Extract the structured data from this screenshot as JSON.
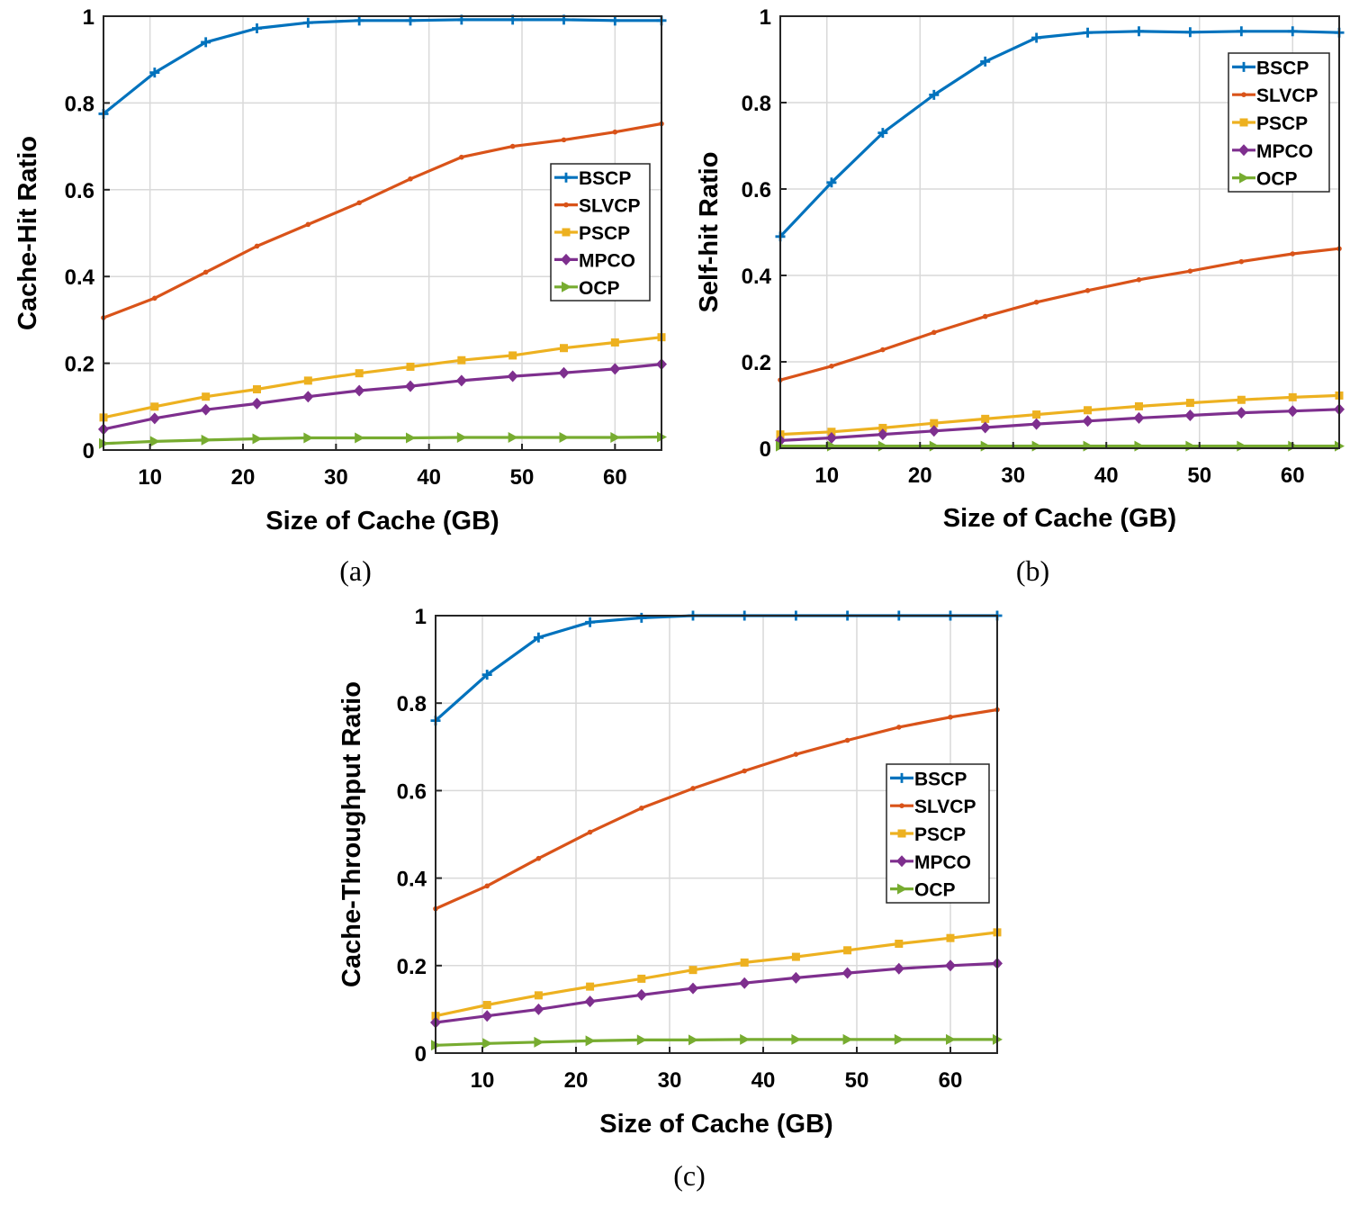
{
  "colors": {
    "BSCP": "#0072BD",
    "SLVCP": "#D95319",
    "PSCP": "#EDB120",
    "MPCO": "#7E2F8E",
    "OCP": "#77AC30",
    "grid": "#d9d9d9",
    "axis": "#262626"
  },
  "chart_data": [
    {
      "id": "a",
      "type": "line",
      "caption": "(a)",
      "xlabel": "Size of Cache (GB)",
      "ylabel": "Cache-Hit Ratio",
      "xlim": [
        5,
        65
      ],
      "ylim": [
        0,
        1
      ],
      "xticks": [
        10,
        20,
        30,
        40,
        50,
        60
      ],
      "yticks": [
        0,
        0.2,
        0.4,
        0.6,
        0.8,
        1
      ],
      "yticklabels": [
        "0",
        "0.2",
        "0.4",
        "0.6",
        "0.8",
        "1"
      ],
      "legend_position": "right-middle",
      "x": [
        5,
        10.5,
        16,
        21.5,
        27,
        32.5,
        38,
        43.5,
        49,
        54.5,
        60,
        65
      ],
      "series": [
        {
          "name": "BSCP",
          "marker": "plus",
          "values": [
            0.775,
            0.87,
            0.94,
            0.972,
            0.985,
            0.99,
            0.99,
            0.992,
            0.992,
            0.992,
            0.99,
            0.99
          ]
        },
        {
          "name": "SLVCP",
          "marker": "point",
          "values": [
            0.305,
            0.35,
            0.41,
            0.47,
            0.52,
            0.57,
            0.625,
            0.675,
            0.7,
            0.715,
            0.733,
            0.752
          ]
        },
        {
          "name": "PSCP",
          "marker": "square",
          "values": [
            0.075,
            0.1,
            0.123,
            0.14,
            0.16,
            0.177,
            0.192,
            0.207,
            0.218,
            0.235,
            0.248,
            0.26
          ]
        },
        {
          "name": "MPCO",
          "marker": "diamond",
          "values": [
            0.048,
            0.073,
            0.093,
            0.107,
            0.123,
            0.137,
            0.147,
            0.16,
            0.17,
            0.178,
            0.187,
            0.198
          ]
        },
        {
          "name": "OCP",
          "marker": "triangle-right",
          "values": [
            0.015,
            0.02,
            0.023,
            0.026,
            0.028,
            0.028,
            0.028,
            0.029,
            0.029,
            0.029,
            0.029,
            0.03
          ]
        }
      ]
    },
    {
      "id": "b",
      "type": "line",
      "caption": "(b)",
      "xlabel": "Size of Cache (GB)",
      "ylabel": "Self-hit Ratio",
      "xlim": [
        5,
        65
      ],
      "ylim": [
        0,
        1
      ],
      "xticks": [
        10,
        20,
        30,
        40,
        50,
        60
      ],
      "yticks": [
        0,
        0.2,
        0.4,
        0.6,
        0.8,
        1
      ],
      "yticklabels": [
        "0",
        "0.2",
        "0.4",
        "0.6",
        "0.8",
        "1"
      ],
      "legend_position": "top-right",
      "x": [
        5,
        10.5,
        16,
        21.5,
        27,
        32.5,
        38,
        43.5,
        49,
        54.5,
        60,
        65
      ],
      "series": [
        {
          "name": "BSCP",
          "marker": "plus",
          "values": [
            0.49,
            0.615,
            0.73,
            0.818,
            0.895,
            0.95,
            0.962,
            0.965,
            0.963,
            0.965,
            0.965,
            0.962
          ]
        },
        {
          "name": "SLVCP",
          "marker": "point",
          "values": [
            0.158,
            0.19,
            0.228,
            0.268,
            0.305,
            0.338,
            0.365,
            0.39,
            0.41,
            0.432,
            0.45,
            0.462
          ]
        },
        {
          "name": "PSCP",
          "marker": "square",
          "values": [
            0.032,
            0.038,
            0.047,
            0.058,
            0.068,
            0.078,
            0.088,
            0.097,
            0.105,
            0.112,
            0.118,
            0.122
          ]
        },
        {
          "name": "MPCO",
          "marker": "diamond",
          "values": [
            0.018,
            0.024,
            0.032,
            0.04,
            0.048,
            0.056,
            0.063,
            0.07,
            0.076,
            0.082,
            0.086,
            0.09
          ]
        },
        {
          "name": "OCP",
          "marker": "triangle-right",
          "values": [
            0.005,
            0.005,
            0.005,
            0.005,
            0.005,
            0.005,
            0.005,
            0.005,
            0.005,
            0.005,
            0.005,
            0.005
          ]
        }
      ]
    },
    {
      "id": "c",
      "type": "line",
      "caption": "(c)",
      "xlabel": "Size of Cache (GB)",
      "ylabel": "Cache-Throughput Ratio",
      "xlim": [
        5,
        65
      ],
      "ylim": [
        0,
        1
      ],
      "xticks": [
        10,
        20,
        30,
        40,
        50,
        60
      ],
      "yticks": [
        0,
        0.2,
        0.4,
        0.6,
        0.8,
        1
      ],
      "yticklabels": [
        "0",
        "0.2",
        "0.4",
        "0.6",
        "0.8",
        "1"
      ],
      "legend_position": "right-middle",
      "x": [
        5,
        10.5,
        16,
        21.5,
        27,
        32.5,
        38,
        43.5,
        49,
        54.5,
        60,
        65
      ],
      "series": [
        {
          "name": "BSCP",
          "marker": "plus",
          "values": [
            0.76,
            0.865,
            0.95,
            0.985,
            0.995,
            1.0,
            1.0,
            1.0,
            1.0,
            1.0,
            1.0,
            1.0
          ]
        },
        {
          "name": "SLVCP",
          "marker": "point",
          "values": [
            0.33,
            0.382,
            0.445,
            0.505,
            0.56,
            0.605,
            0.645,
            0.683,
            0.715,
            0.745,
            0.768,
            0.785
          ]
        },
        {
          "name": "PSCP",
          "marker": "square",
          "values": [
            0.085,
            0.11,
            0.132,
            0.152,
            0.17,
            0.19,
            0.207,
            0.22,
            0.235,
            0.25,
            0.263,
            0.276
          ]
        },
        {
          "name": "MPCO",
          "marker": "diamond",
          "values": [
            0.07,
            0.085,
            0.1,
            0.118,
            0.133,
            0.148,
            0.16,
            0.172,
            0.183,
            0.193,
            0.2,
            0.205
          ]
        },
        {
          "name": "OCP",
          "marker": "triangle-right",
          "values": [
            0.018,
            0.022,
            0.025,
            0.028,
            0.03,
            0.03,
            0.031,
            0.031,
            0.031,
            0.031,
            0.031,
            0.031
          ]
        }
      ]
    }
  ]
}
